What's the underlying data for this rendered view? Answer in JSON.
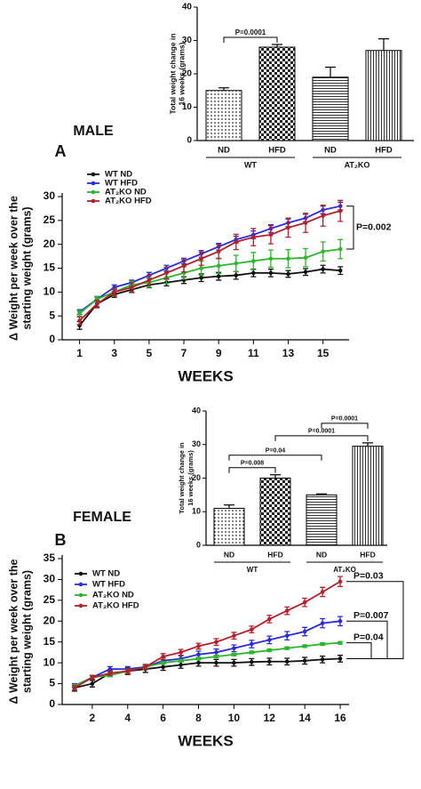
{
  "chart_data": [
    {
      "type": "bar",
      "label": "MALE",
      "ylabel": [
        "Total weight change in",
        "16 weeks (grams)"
      ],
      "categories": [
        "ND",
        "HFD",
        "ND",
        "HFD"
      ],
      "groups": [
        {
          "label": "WT",
          "span": [
            0,
            1
          ]
        },
        {
          "label": "AT₂KO",
          "span": [
            2,
            3
          ]
        }
      ],
      "values": [
        15,
        28,
        19,
        27
      ],
      "errors": [
        0.8,
        0.8,
        3,
        3.5
      ],
      "patterns": [
        "dots",
        "checker",
        "hlines",
        "vlines"
      ],
      "color": "#000000",
      "ylim": [
        0,
        40
      ],
      "yticks": [
        0,
        10,
        20,
        30,
        40
      ],
      "comparisons": [
        {
          "label": "P=0.0001",
          "pair": [
            0,
            1
          ]
        }
      ]
    },
    {
      "type": "line",
      "panel": "A",
      "xlabel": "WEEKS",
      "ylabel": [
        "Δ Weight per week over the",
        "starting weight (grams)"
      ],
      "x": [
        1,
        2,
        3,
        4,
        5,
        6,
        7,
        8,
        9,
        10,
        11,
        12,
        13,
        14,
        15,
        16
      ],
      "series": [
        {
          "name": "WT ND",
          "color": "#111111",
          "values": [
            3,
            7.5,
            9.5,
            10.5,
            11.5,
            12,
            12.5,
            13,
            13.3,
            13.5,
            14,
            14,
            13.8,
            14.2,
            14.8,
            14.5
          ],
          "errors": [
            0.8,
            0.6,
            0.6,
            0.6,
            0.6,
            0.7,
            0.7,
            0.8,
            0.8,
            0.8,
            0.8,
            0.8,
            0.7,
            0.7,
            0.8,
            0.8
          ]
        },
        {
          "name": "WT HFD",
          "color": "#2b2bd9",
          "values": [
            5.8,
            8.5,
            11,
            12,
            13.5,
            15,
            16.5,
            18,
            19.5,
            21,
            22,
            23.3,
            24.5,
            25.5,
            27.2,
            28
          ],
          "errors": [
            0.5,
            0.5,
            0.5,
            0.5,
            0.6,
            0.6,
            0.6,
            0.7,
            0.7,
            0.7,
            0.8,
            0.8,
            0.8,
            0.8,
            0.8,
            0.8
          ]
        },
        {
          "name": "AT₂KO ND",
          "color": "#2db52d",
          "values": [
            5.5,
            8.5,
            10,
            11.5,
            12,
            13,
            14,
            15,
            15.5,
            16,
            16.5,
            17,
            17,
            17.2,
            18.5,
            19
          ],
          "errors": [
            0.6,
            0.6,
            0.7,
            0.8,
            1,
            1.2,
            1.3,
            1.5,
            1.6,
            1.7,
            1.8,
            1.8,
            1.9,
            1.9,
            2,
            2
          ]
        },
        {
          "name": "AT₂KO HFD",
          "color": "#b3202b",
          "values": [
            4,
            7.5,
            10,
            11,
            12.5,
            14,
            15.5,
            17,
            18.5,
            20.5,
            21.5,
            22,
            23.5,
            24.5,
            26,
            27
          ],
          "errors": [
            0.8,
            0.8,
            0.8,
            1,
            1,
            1.2,
            1.3,
            1.4,
            1.5,
            1.6,
            1.8,
            1.9,
            2,
            2,
            2.2,
            2.2
          ]
        }
      ],
      "xlim": [
        0,
        16.5
      ],
      "xticks": [
        1,
        3,
        5,
        7,
        9,
        11,
        13,
        15
      ],
      "ylim": [
        0,
        30
      ],
      "yticks": [
        0,
        5,
        10,
        15,
        20,
        25,
        30
      ],
      "annotations": [
        {
          "label": "P=0.002",
          "between": [
            1,
            2
          ]
        }
      ]
    },
    {
      "type": "bar",
      "label": "FEMALE",
      "ylabel": [
        "Total weight change in",
        "16 weeks (grams)"
      ],
      "categories": [
        "ND",
        "HFD",
        "ND",
        "HFD"
      ],
      "groups": [
        {
          "label": "WT",
          "span": [
            0,
            1
          ]
        },
        {
          "label": "AT₂KO",
          "span": [
            2,
            3
          ]
        }
      ],
      "values": [
        11,
        20,
        15,
        29.5
      ],
      "errors": [
        1,
        1,
        0.3,
        1
      ],
      "patterns": [
        "dots",
        "checker",
        "hlines",
        "vlines"
      ],
      "color": "#000000",
      "ylim": [
        0,
        40
      ],
      "yticks": [
        0,
        10,
        20,
        30,
        40
      ],
      "comparisons": [
        {
          "label": "P=0.008",
          "pair": [
            0,
            1
          ]
        },
        {
          "label": "P=0.04",
          "pair": [
            0,
            2
          ]
        },
        {
          "label": "P=0.0001",
          "pair": [
            1,
            3
          ]
        },
        {
          "label": "P=0.0001",
          "pair": [
            2,
            3
          ]
        }
      ]
    },
    {
      "type": "line",
      "panel": "B",
      "xlabel": "WEEKS",
      "ylabel": [
        "Δ Weight per week over the",
        "starting weight (grams)"
      ],
      "x": [
        1,
        2,
        3,
        4,
        5,
        6,
        7,
        8,
        9,
        10,
        11,
        12,
        13,
        14,
        15,
        16
      ],
      "series": [
        {
          "name": "WT ND",
          "color": "#111111",
          "values": [
            4,
            5,
            7.5,
            8,
            8.5,
            9,
            9.5,
            10,
            10,
            10,
            10.2,
            10.3,
            10.3,
            10.5,
            10.8,
            11
          ],
          "errors": [
            0.8,
            0.8,
            0.8,
            0.8,
            0.8,
            0.8,
            0.8,
            0.8,
            0.8,
            0.8,
            0.8,
            0.8,
            0.8,
            0.8,
            0.8,
            0.8
          ]
        },
        {
          "name": "WT HFD",
          "color": "#2b2bd9",
          "values": [
            4.5,
            6.5,
            8.5,
            8.5,
            9,
            10.5,
            11,
            12,
            12.5,
            13.5,
            14.5,
            15.5,
            16.5,
            17.5,
            19.5,
            20
          ],
          "errors": [
            0.5,
            0.5,
            0.6,
            0.6,
            0.6,
            0.7,
            0.7,
            0.8,
            0.8,
            0.8,
            0.9,
            0.9,
            1,
            1,
            1.1,
            1.1
          ]
        },
        {
          "name": "AT₂KO ND",
          "color": "#2db52d",
          "values": [
            4.5,
            6.5,
            7,
            8,
            9,
            10,
            10.5,
            11,
            11.5,
            12,
            12.5,
            13,
            13.5,
            14,
            14.5,
            14.8
          ],
          "errors": [
            0.3,
            0.3,
            0.3,
            0.3,
            0.3,
            0.3,
            0.3,
            0.3,
            0.3,
            0.3,
            0.3,
            0.3,
            0.3,
            0.3,
            0.3,
            0.3
          ]
        },
        {
          "name": "AT₂KO HFD",
          "color": "#b3202b",
          "values": [
            4,
            6.5,
            7.5,
            8,
            9,
            11.5,
            12.5,
            14,
            15,
            16.5,
            18,
            20.5,
            22.5,
            24.5,
            27,
            29.5
          ],
          "errors": [
            0.5,
            0.5,
            0.5,
            0.6,
            0.6,
            0.7,
            0.7,
            0.7,
            0.8,
            0.8,
            0.8,
            0.9,
            0.9,
            1,
            1.1,
            1.2
          ]
        }
      ],
      "xlim": [
        0.3,
        16.5
      ],
      "xticks": [
        2,
        4,
        6,
        8,
        10,
        12,
        14,
        16
      ],
      "ylim": [
        0,
        35
      ],
      "yticks": [
        0,
        5,
        10,
        15,
        20,
        25,
        30,
        35
      ],
      "annotations": [
        {
          "label": "P=0.04",
          "between": [
            2,
            0
          ]
        },
        {
          "label": "P=0.007",
          "between": [
            1,
            0
          ]
        },
        {
          "label": "P=0.03",
          "between": [
            3,
            0
          ]
        }
      ]
    }
  ]
}
